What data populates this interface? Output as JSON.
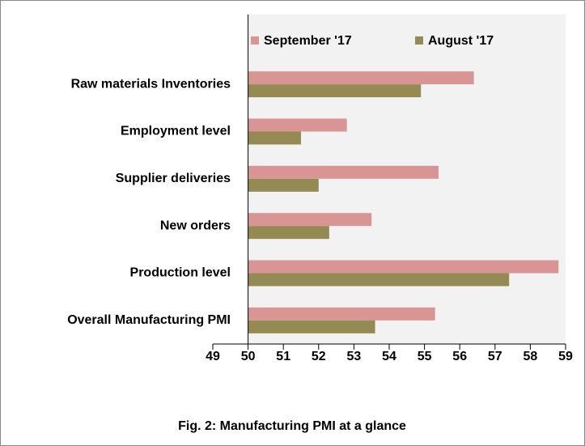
{
  "chart_data": {
    "type": "hbar",
    "title": "Fig. 2: Manufacturing PMI at a glance",
    "categories": [
      "Raw materials Inventories",
      "Employment level",
      "Supplier deliveries",
      "New orders",
      "Production level",
      "Overall Manufacturing PMI"
    ],
    "series": [
      {
        "name": "September '17",
        "color": "#d99594",
        "values": [
          56.4,
          52.8,
          55.4,
          53.5,
          58.8,
          55.3
        ]
      },
      {
        "name": "August '17",
        "color": "#948a54",
        "values": [
          54.9,
          51.5,
          52.0,
          52.3,
          57.4,
          53.6
        ]
      }
    ],
    "xlim": [
      49,
      59
    ],
    "xticks": [
      49,
      50,
      51,
      52,
      53,
      54,
      55,
      56,
      57,
      58,
      59
    ],
    "axis_crosses": 50,
    "legend": "top",
    "plot_background": "#f2f2f2"
  }
}
